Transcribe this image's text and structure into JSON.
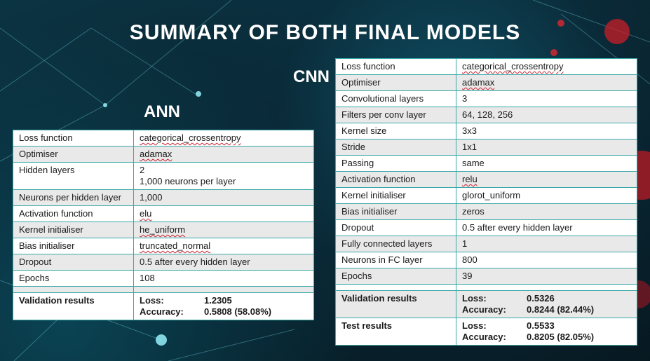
{
  "title": "SUMMARY OF BOTH FINAL MODELS",
  "ann": {
    "label": "ANN",
    "rows": [
      {
        "key": "Loss function",
        "value": "categorical_crossentropy"
      },
      {
        "key": "Optimiser",
        "value": "adamax"
      },
      {
        "key": "Hidden layers",
        "value": "2",
        "value2": "1,000 neurons per layer"
      },
      {
        "key": "Neurons per hidden layer",
        "value": "1,000"
      },
      {
        "key": "Activation function",
        "value": "elu"
      },
      {
        "key": "Kernel initialiser",
        "value": "he_uniform"
      },
      {
        "key": "Bias initialiser",
        "value": "truncated_normal"
      },
      {
        "key": "Dropout",
        "value": "0.5 after every hidden layer"
      },
      {
        "key": "Epochs",
        "value": "108"
      }
    ],
    "validation": {
      "label": "Validation results",
      "loss_label": "Loss:",
      "loss": "1.2305",
      "acc_label": "Accuracy:",
      "acc": "0.5808 (58.08%)"
    }
  },
  "cnn": {
    "label": "CNN",
    "rows": [
      {
        "key": "Loss function",
        "value": "categorical_crossentropy"
      },
      {
        "key": "Optimiser",
        "value": "adamax"
      },
      {
        "key": "Convolutional layers",
        "value": "3"
      },
      {
        "key": "Filters per conv layer",
        "value": "64, 128, 256"
      },
      {
        "key": "Kernel size",
        "value": "3x3"
      },
      {
        "key": "Stride",
        "value": "1x1"
      },
      {
        "key": "Passing",
        "value": "same"
      },
      {
        "key": "Activation function",
        "value": "relu"
      },
      {
        "key": "Kernel initialiser",
        "value": "glorot_uniform"
      },
      {
        "key": "Bias initialiser",
        "value": "zeros"
      },
      {
        "key": "Dropout",
        "value": "0.5 after every hidden layer"
      },
      {
        "key": "Fully connected layers",
        "value": "1"
      },
      {
        "key": "Neurons in FC layer",
        "value": "800"
      },
      {
        "key": "Epochs",
        "value": "39"
      }
    ],
    "validation": {
      "label": "Validation results",
      "loss_label": "Loss:",
      "loss": "0.5326",
      "acc_label": "Accuracy:",
      "acc": "0.8244 (82.44%)"
    },
    "test": {
      "label": "Test results",
      "loss_label": "Loss:",
      "loss": "0.5533",
      "acc_label": "Accuracy:",
      "acc": "0.8205 (82.05%)"
    }
  }
}
